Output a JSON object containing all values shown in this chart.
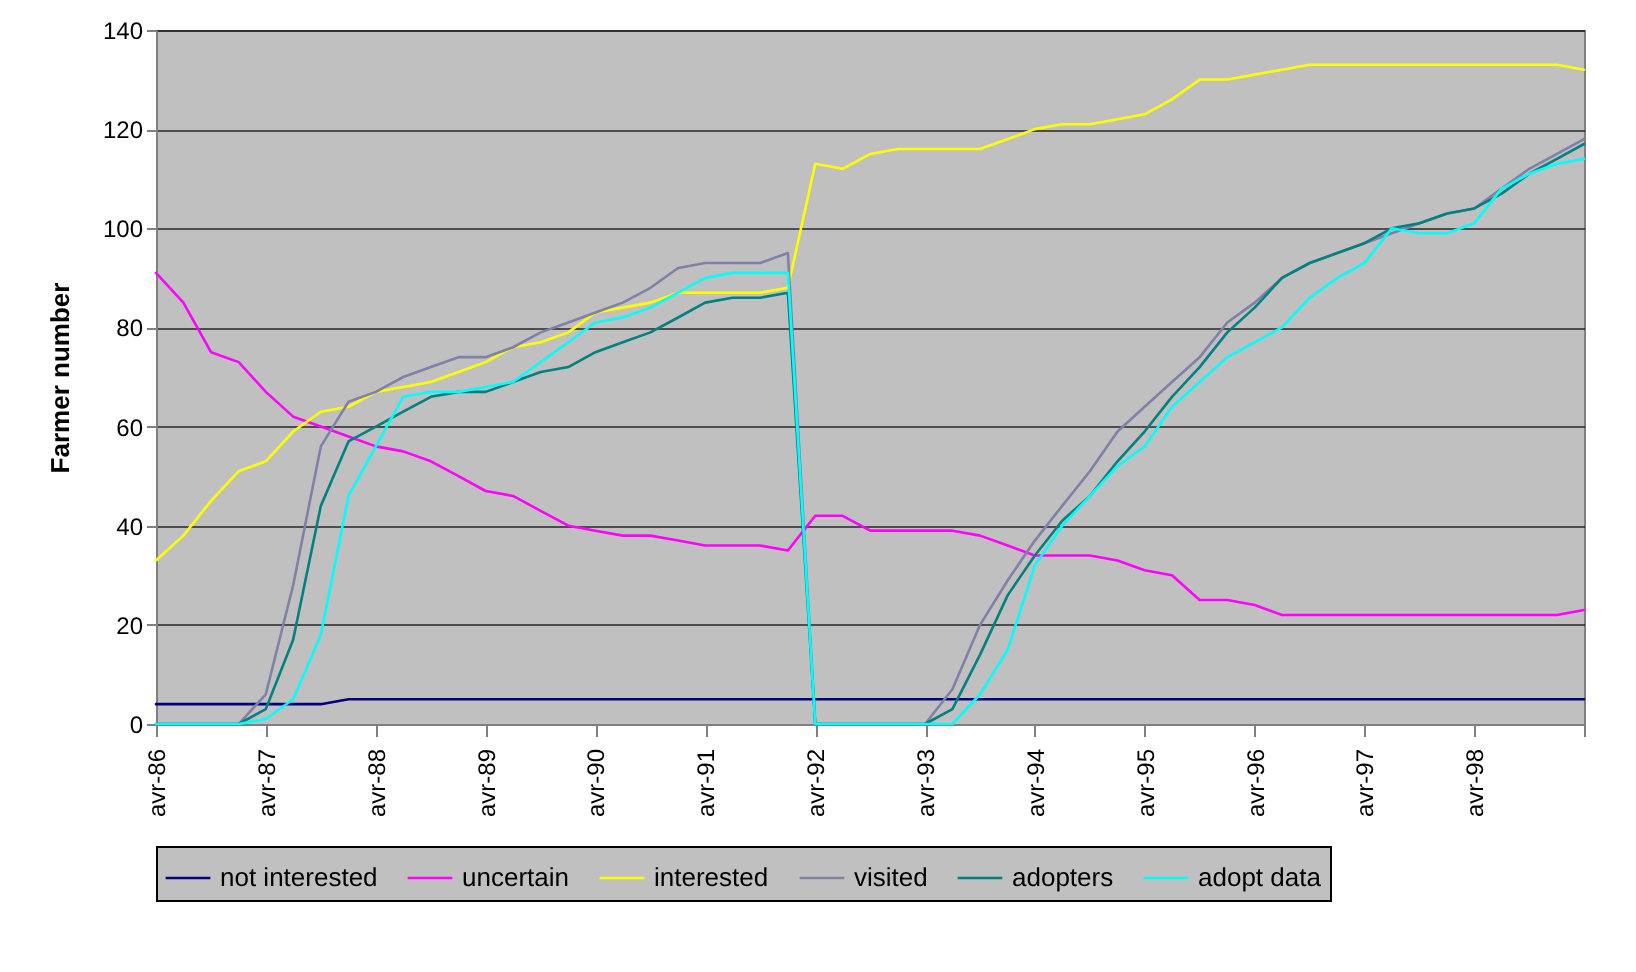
{
  "chart_data": {
    "type": "line",
    "ylabel": "Farmer number",
    "x": [
      "1986-04",
      "1986-07",
      "1986-10",
      "1987-01",
      "1987-04",
      "1987-07",
      "1987-10",
      "1988-01",
      "1988-04",
      "1988-07",
      "1988-10",
      "1989-01",
      "1989-04",
      "1989-07",
      "1989-10",
      "1990-01",
      "1990-04",
      "1990-07",
      "1990-10",
      "1991-01",
      "1991-04",
      "1991-07",
      "1991-10",
      "1992-01",
      "1992-04",
      "1992-07",
      "1992-10",
      "1993-01",
      "1993-04",
      "1993-07",
      "1993-10",
      "1994-01",
      "1994-04",
      "1994-07",
      "1994-10",
      "1995-01",
      "1995-04",
      "1995-07",
      "1995-10",
      "1996-01",
      "1996-04",
      "1996-07",
      "1996-10",
      "1997-01",
      "1997-04",
      "1997-07",
      "1997-10",
      "1998-01",
      "1998-04",
      "1998-07",
      "1998-10",
      "1999-01",
      "1999-04"
    ],
    "xlim": [
      "1986-04",
      "1999-04"
    ],
    "xticks": [
      {
        "value": "1986-04",
        "label": "avr-86"
      },
      {
        "value": "1987-04",
        "label": "avr-87"
      },
      {
        "value": "1988-04",
        "label": "avr-88"
      },
      {
        "value": "1989-04",
        "label": "avr-89"
      },
      {
        "value": "1990-04",
        "label": "avr-90"
      },
      {
        "value": "1991-04",
        "label": "avr-91"
      },
      {
        "value": "1992-04",
        "label": "avr-92"
      },
      {
        "value": "1993-04",
        "label": "avr-93"
      },
      {
        "value": "1994-04",
        "label": "avr-94"
      },
      {
        "value": "1995-04",
        "label": "avr-95"
      },
      {
        "value": "1996-04",
        "label": "avr-96"
      },
      {
        "value": "1997-04",
        "label": "avr-97"
      },
      {
        "value": "1998-04",
        "label": "avr-98"
      },
      {
        "value": "1999-04",
        "label": null
      }
    ],
    "ylim": [
      0,
      140
    ],
    "yticks": [
      0,
      20,
      40,
      60,
      80,
      100,
      120,
      140
    ],
    "grid": "y",
    "legend": "bottom",
    "line_style": "solid",
    "series": [
      {
        "name": "not interested",
        "color": "#000080",
        "values": [
          4,
          4,
          4,
          4,
          4,
          4,
          4,
          5,
          5,
          5,
          5,
          5,
          5,
          5,
          5,
          5,
          5,
          5,
          5,
          5,
          5,
          5,
          5,
          5,
          5,
          5,
          5,
          5,
          5,
          5,
          5,
          5,
          5,
          5,
          5,
          5,
          5,
          5,
          5,
          5,
          5,
          5,
          5,
          5,
          5,
          5,
          5,
          5,
          5,
          5,
          5,
          5,
          5
        ]
      },
      {
        "name": "uncertain",
        "color": "#ff00ff",
        "values": [
          91,
          85,
          75,
          73,
          67,
          62,
          60,
          58,
          56,
          55,
          53,
          50,
          47,
          46,
          43,
          40,
          39,
          38,
          38,
          37,
          36,
          36,
          36,
          35,
          42,
          42,
          39,
          39,
          39,
          39,
          38,
          36,
          34,
          34,
          34,
          33,
          31,
          30,
          25,
          25,
          24,
          22,
          22,
          22,
          22,
          22,
          22,
          22,
          22,
          22,
          22,
          22,
          23
        ]
      },
      {
        "name": "interested",
        "color": "#ffff00",
        "values": [
          33,
          38,
          45,
          51,
          53,
          59,
          63,
          64,
          67,
          68,
          69,
          71,
          73,
          76,
          77,
          79,
          83,
          84,
          85,
          87,
          87,
          87,
          87,
          88,
          113,
          112,
          115,
          116,
          116,
          116,
          116,
          118,
          120,
          121,
          121,
          122,
          123,
          126,
          130,
          130,
          131,
          132,
          133,
          133,
          133,
          133,
          133,
          133,
          133,
          133,
          133,
          133,
          132
        ]
      },
      {
        "name": "visited",
        "color": "#8080a8",
        "values": [
          0,
          0,
          0,
          0,
          6,
          28,
          56,
          65,
          67,
          70,
          72,
          74,
          74,
          76,
          79,
          81,
          83,
          85,
          88,
          92,
          93,
          93,
          93,
          95,
          0,
          0,
          0,
          0,
          0,
          7,
          20,
          29,
          37,
          44,
          51,
          59,
          64,
          69,
          74,
          81,
          85,
          90,
          93,
          95,
          97,
          99,
          101,
          103,
          104,
          108,
          112,
          115,
          118
        ]
      },
      {
        "name": "adopters",
        "color": "#008080",
        "values": [
          0,
          0,
          0,
          0,
          3,
          17,
          44,
          57,
          60,
          63,
          66,
          67,
          67,
          69,
          71,
          72,
          75,
          77,
          79,
          82,
          85,
          86,
          86,
          87,
          0,
          0,
          0,
          0,
          0,
          3,
          14,
          26,
          34,
          41,
          46,
          53,
          59,
          66,
          72,
          79,
          84,
          90,
          93,
          95,
          97,
          100,
          101,
          103,
          104,
          107,
          111,
          114,
          117
        ]
      },
      {
        "name": "adopt data",
        "color": "#00ffff",
        "values": [
          0,
          0,
          0,
          0,
          1,
          5,
          18,
          46,
          56,
          66,
          67,
          67,
          68,
          69,
          73,
          77,
          81,
          82,
          84,
          87,
          90,
          91,
          91,
          91,
          0,
          0,
          0,
          0,
          0,
          0,
          6,
          15,
          32,
          40,
          46,
          52,
          56,
          64,
          69,
          74,
          77,
          80,
          86,
          90,
          93,
          100,
          99,
          99,
          101,
          108,
          111,
          113,
          114
        ]
      }
    ]
  }
}
